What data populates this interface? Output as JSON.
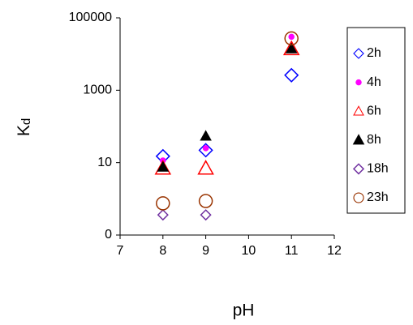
{
  "chart_data": {
    "type": "scatter",
    "xlabel": "pH",
    "ylabel": "K",
    "ylabel_sub": "d",
    "xlim": [
      7,
      12
    ],
    "xticks": [
      7,
      8,
      9,
      10,
      11,
      12
    ],
    "ylim": [
      0.1,
      100000
    ],
    "ylog": true,
    "yticks": [
      {
        "value": 0.1,
        "label": "0"
      },
      10,
      1000,
      100000
    ],
    "legend": "right",
    "series": [
      {
        "name": "2h",
        "color": "#0000ff",
        "marker": "diamond",
        "filled": false,
        "x": [
          8,
          9,
          11
        ],
        "values": [
          15,
          22,
          2600
        ]
      },
      {
        "name": "4h",
        "color": "#ff00ff",
        "marker": "circle",
        "filled": true,
        "x": [
          8,
          9,
          11
        ],
        "values": [
          11.5,
          25,
          30000
        ]
      },
      {
        "name": "6h",
        "color": "#ff0000",
        "marker": "triangle",
        "filled": false,
        "x": [
          8,
          9,
          11
        ],
        "values": [
          7,
          7,
          14000
        ]
      },
      {
        "name": "8h",
        "color": "#000000",
        "marker": "triangle",
        "filled": true,
        "x": [
          8,
          9,
          11
        ],
        "values": [
          7.5,
          54,
          14000
        ]
      },
      {
        "name": "18h",
        "color": "#7030a0",
        "marker": "diamond",
        "filled": false,
        "x": [
          8,
          9
        ],
        "values": [
          0.36,
          0.36
        ]
      },
      {
        "name": "23h",
        "color": "#993300",
        "marker": "circle",
        "filled": false,
        "x": [
          8,
          9,
          11
        ],
        "values": [
          0.75,
          0.87,
          27000
        ]
      }
    ]
  }
}
